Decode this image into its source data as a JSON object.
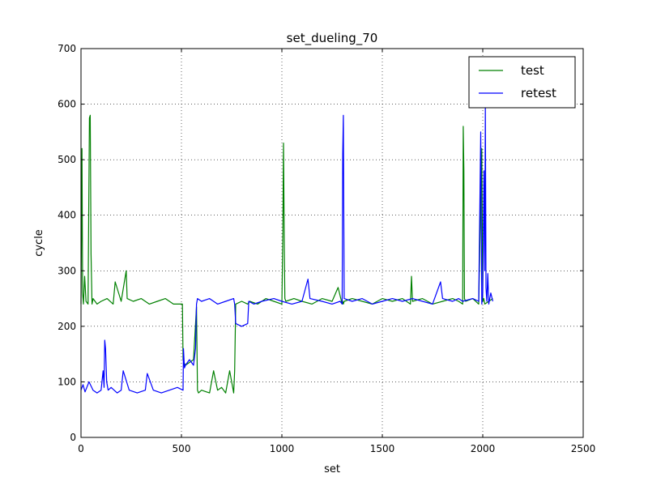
{
  "chart_data": {
    "type": "line",
    "title": "set_dueling_70",
    "xlabel": "set",
    "ylabel": "cycle",
    "xlim": [
      0,
      2500
    ],
    "ylim": [
      0,
      700
    ],
    "xticks": [
      0,
      500,
      1000,
      1500,
      2000,
      2500
    ],
    "yticks": [
      0,
      100,
      200,
      300,
      400,
      500,
      600,
      700
    ],
    "xtick_labels": [
      "0",
      "500",
      "1000",
      "1500",
      "2000",
      "2500"
    ],
    "ytick_labels": [
      "0",
      "100",
      "200",
      "300",
      "400",
      "500",
      "600",
      "700"
    ],
    "grid": true,
    "legend_position": "top-right",
    "series": [
      {
        "name": "test",
        "color": "#008000",
        "x": [
          0,
          5,
          8,
          12,
          18,
          25,
          35,
          42,
          46,
          50,
          55,
          60,
          80,
          100,
          130,
          160,
          170,
          200,
          225,
          230,
          260,
          300,
          340,
          380,
          420,
          460,
          505,
          508,
          512,
          520,
          560,
          575,
          580,
          585,
          600,
          640,
          660,
          680,
          700,
          720,
          740,
          760,
          765,
          770,
          800,
          830,
          840,
          880,
          920,
          960,
          1000,
          1005,
          1008,
          1012,
          1015,
          1020,
          1060,
          1100,
          1150,
          1200,
          1250,
          1280,
          1300,
          1303,
          1306,
          1310,
          1350,
          1400,
          1450,
          1500,
          1550,
          1600,
          1640,
          1645,
          1650,
          1700,
          1750,
          1800,
          1850,
          1880,
          1900,
          1903,
          1906,
          1909,
          1915,
          1950,
          1980,
          1995,
          2000,
          2005,
          2010,
          2030,
          2050
        ],
        "y": [
          240,
          520,
          260,
          240,
          290,
          245,
          240,
          575,
          580,
          330,
          240,
          250,
          240,
          245,
          250,
          240,
          280,
          245,
          300,
          250,
          245,
          250,
          240,
          245,
          250,
          240,
          240,
          140,
          135,
          130,
          140,
          235,
          85,
          80,
          85,
          80,
          120,
          85,
          90,
          80,
          120,
          80,
          120,
          240,
          245,
          240,
          245,
          240,
          250,
          245,
          240,
          370,
          530,
          340,
          250,
          245,
          250,
          245,
          240,
          250,
          245,
          270,
          240,
          245,
          240,
          245,
          250,
          245,
          240,
          250,
          245,
          250,
          240,
          290,
          245,
          250,
          240,
          245,
          250,
          245,
          240,
          560,
          480,
          250,
          245,
          250,
          240,
          520,
          245,
          250,
          240,
          245,
          250
        ]
      },
      {
        "name": "retest",
        "color": "#0000ff",
        "x": [
          0,
          10,
          20,
          40,
          60,
          80,
          100,
          110,
          115,
          118,
          122,
          128,
          135,
          150,
          180,
          200,
          210,
          240,
          280,
          320,
          330,
          360,
          400,
          440,
          480,
          508,
          510,
          515,
          520,
          540,
          560,
          570,
          575,
          580,
          600,
          640,
          680,
          720,
          760,
          765,
          770,
          800,
          830,
          835,
          860,
          900,
          960,
          1000,
          1050,
          1100,
          1130,
          1140,
          1200,
          1250,
          1290,
          1300,
          1303,
          1306,
          1310,
          1350,
          1400,
          1450,
          1500,
          1550,
          1600,
          1650,
          1700,
          1750,
          1790,
          1800,
          1850,
          1880,
          1900,
          1950,
          1980,
          1990,
          1995,
          2000,
          2003,
          2006,
          2010,
          2013,
          2016,
          2020,
          2025,
          2030,
          2040,
          2050
        ],
        "y": [
          85,
          95,
          82,
          100,
          85,
          80,
          85,
          120,
          90,
          175,
          160,
          100,
          85,
          90,
          80,
          85,
          120,
          85,
          80,
          85,
          115,
          85,
          80,
          85,
          90,
          85,
          160,
          125,
          130,
          140,
          130,
          160,
          240,
          250,
          245,
          250,
          240,
          245,
          250,
          240,
          205,
          200,
          205,
          245,
          240,
          245,
          250,
          245,
          240,
          245,
          285,
          250,
          245,
          240,
          245,
          240,
          510,
          580,
          250,
          245,
          250,
          240,
          245,
          250,
          245,
          250,
          245,
          240,
          280,
          250,
          245,
          250,
          245,
          250,
          245,
          550,
          240,
          260,
          350,
          480,
          300,
          600,
          270,
          245,
          295,
          240,
          260,
          245
        ]
      }
    ]
  }
}
